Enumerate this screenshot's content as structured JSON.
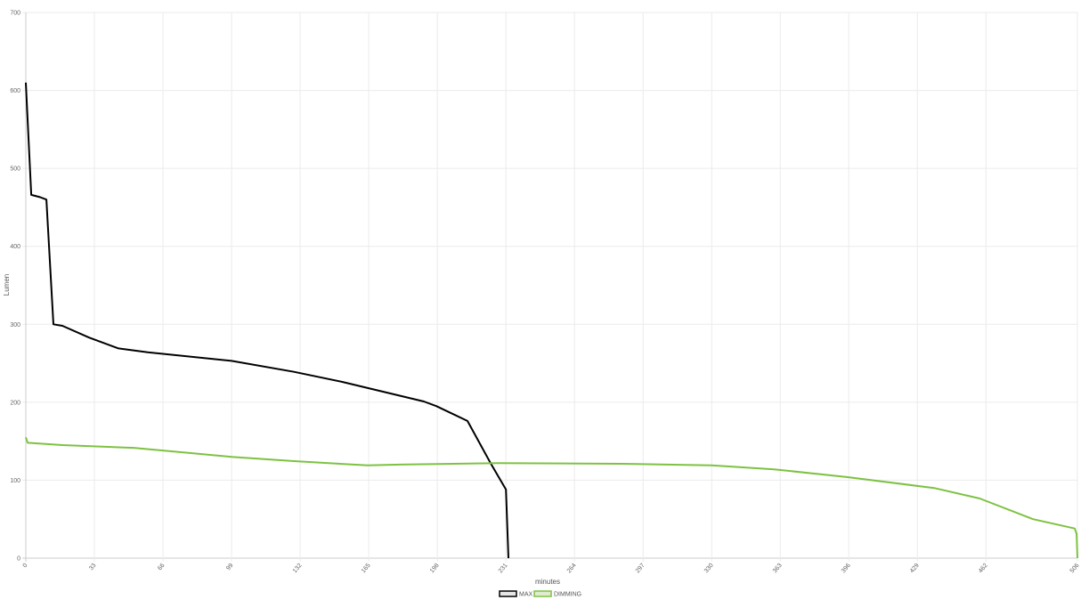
{
  "chart_data": {
    "type": "line",
    "xlabel": "minutes",
    "ylabel": "Lumen",
    "xlim": [
      0,
      506
    ],
    "ylim": [
      0,
      700
    ],
    "x_ticks": [
      0,
      33,
      66,
      99,
      132,
      165,
      198,
      231,
      264,
      297,
      330,
      363,
      396,
      429,
      462,
      506
    ],
    "y_ticks": [
      0,
      100,
      200,
      300,
      400,
      500,
      600,
      700
    ],
    "grid": true,
    "legend_position": "bottom",
    "series": [
      {
        "name": "MAX",
        "color": "#000000",
        "points": [
          [
            0,
            610
          ],
          [
            2.6,
            466
          ],
          [
            6.9,
            463
          ],
          [
            9.9,
            460
          ],
          [
            13.3,
            300
          ],
          [
            17.6,
            298
          ],
          [
            30.4,
            283
          ],
          [
            44.6,
            269
          ],
          [
            58.7,
            264
          ],
          [
            99,
            253
          ],
          [
            129,
            239
          ],
          [
            152.5,
            226
          ],
          [
            191.5,
            201
          ],
          [
            197.5,
            195
          ],
          [
            212.5,
            176
          ],
          [
            223.6,
            122
          ],
          [
            231,
            88
          ],
          [
            232.2,
            0
          ]
        ]
      },
      {
        "name": "DIMMING",
        "color": "#7dc242",
        "points": [
          [
            0,
            155
          ],
          [
            0.9,
            148
          ],
          [
            17.6,
            145
          ],
          [
            52,
            141.5
          ],
          [
            99,
            130
          ],
          [
            129,
            124.5
          ],
          [
            164.5,
            119
          ],
          [
            180,
            120
          ],
          [
            227.5,
            122
          ],
          [
            287.5,
            121
          ],
          [
            330,
            119
          ],
          [
            360,
            114
          ],
          [
            395,
            104
          ],
          [
            437,
            90
          ],
          [
            459,
            76.5
          ],
          [
            484.6,
            50
          ],
          [
            504.7,
            38
          ],
          [
            505.6,
            31
          ],
          [
            506,
            0
          ]
        ]
      }
    ]
  }
}
